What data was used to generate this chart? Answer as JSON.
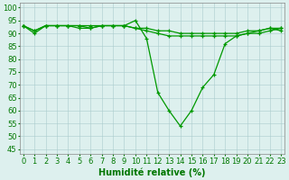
{
  "series": [
    {
      "x": [
        0,
        1,
        2,
        3,
        4,
        5,
        6,
        7,
        8,
        9,
        10,
        11,
        12,
        13,
        14,
        15,
        16,
        17,
        18,
        19,
        20,
        21,
        22,
        23
      ],
      "y": [
        93,
        90,
        93,
        93,
        93,
        93,
        92,
        93,
        93,
        93,
        95,
        88,
        67,
        60,
        54,
        60,
        69,
        74,
        86,
        89,
        90,
        91,
        92,
        91
      ]
    },
    {
      "x": [
        0,
        1,
        2,
        3,
        4,
        5,
        6,
        7,
        8,
        9,
        10,
        11,
        12,
        13,
        14,
        15,
        16,
        17,
        18,
        19,
        20,
        21,
        22,
        23
      ],
      "y": [
        93,
        91,
        93,
        93,
        93,
        92,
        92,
        93,
        93,
        93,
        92,
        91,
        90,
        89,
        89,
        89,
        89,
        89,
        89,
        89,
        90,
        90,
        91,
        92
      ]
    },
    {
      "x": [
        0,
        1,
        2,
        3,
        4,
        5,
        6,
        7,
        8,
        9,
        10,
        11,
        12,
        13,
        14,
        15,
        16,
        17,
        18,
        19,
        20,
        21,
        22,
        23
      ],
      "y": [
        93,
        91,
        93,
        93,
        93,
        93,
        93,
        93,
        93,
        93,
        92,
        92,
        91,
        91,
        90,
        90,
        90,
        90,
        90,
        90,
        91,
        91,
        92,
        92
      ]
    }
  ],
  "xlabel": "Humidité relative (%)",
  "xlabel_fontsize": 7,
  "ylabel_ticks": [
    45,
    50,
    55,
    60,
    65,
    70,
    75,
    80,
    85,
    90,
    95,
    100
  ],
  "xlim": [
    -0.3,
    23.3
  ],
  "ylim": [
    43,
    102
  ],
  "bg_color": "#ddf0ee",
  "grid_color": "#aacccc",
  "tick_color": "#007700",
  "tick_fontsize": 6,
  "line_color": "#009900",
  "marker_color": "#009900",
  "linewidth": 0.9,
  "markersize": 2.5
}
